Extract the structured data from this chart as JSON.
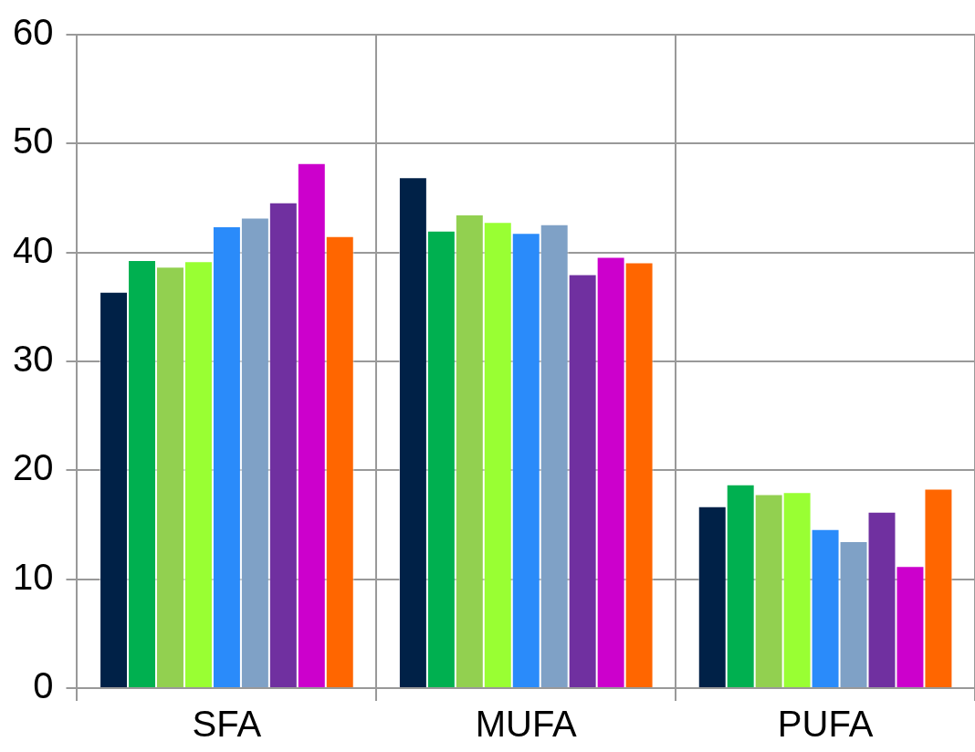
{
  "chart_data": {
    "type": "bar",
    "categories": [
      "SFA",
      "MUFA",
      "PUFA"
    ],
    "series": [
      {
        "color": "#002147",
        "values": [
          36.4,
          46.9,
          16.7
        ]
      },
      {
        "color": "#00b050",
        "values": [
          39.3,
          42.0,
          18.7
        ]
      },
      {
        "color": "#92d050",
        "values": [
          38.7,
          43.5,
          17.8
        ]
      },
      {
        "color": "#99ff33",
        "values": [
          39.2,
          42.8,
          18.0
        ]
      },
      {
        "color": "#2a8bfa",
        "values": [
          42.4,
          41.8,
          14.6
        ]
      },
      {
        "color": "#7fa1c6",
        "values": [
          43.2,
          42.6,
          13.5
        ]
      },
      {
        "color": "#7030a0",
        "values": [
          44.6,
          38.0,
          16.2
        ]
      },
      {
        "color": "#cc00cc",
        "values": [
          48.2,
          39.6,
          11.2
        ]
      },
      {
        "color": "#ff6600",
        "values": [
          41.5,
          39.1,
          18.3
        ]
      }
    ],
    "ylim": [
      0,
      60
    ],
    "yticks": [
      0,
      10,
      20,
      30,
      40,
      50,
      60
    ],
    "grid": true,
    "legend": false
  }
}
